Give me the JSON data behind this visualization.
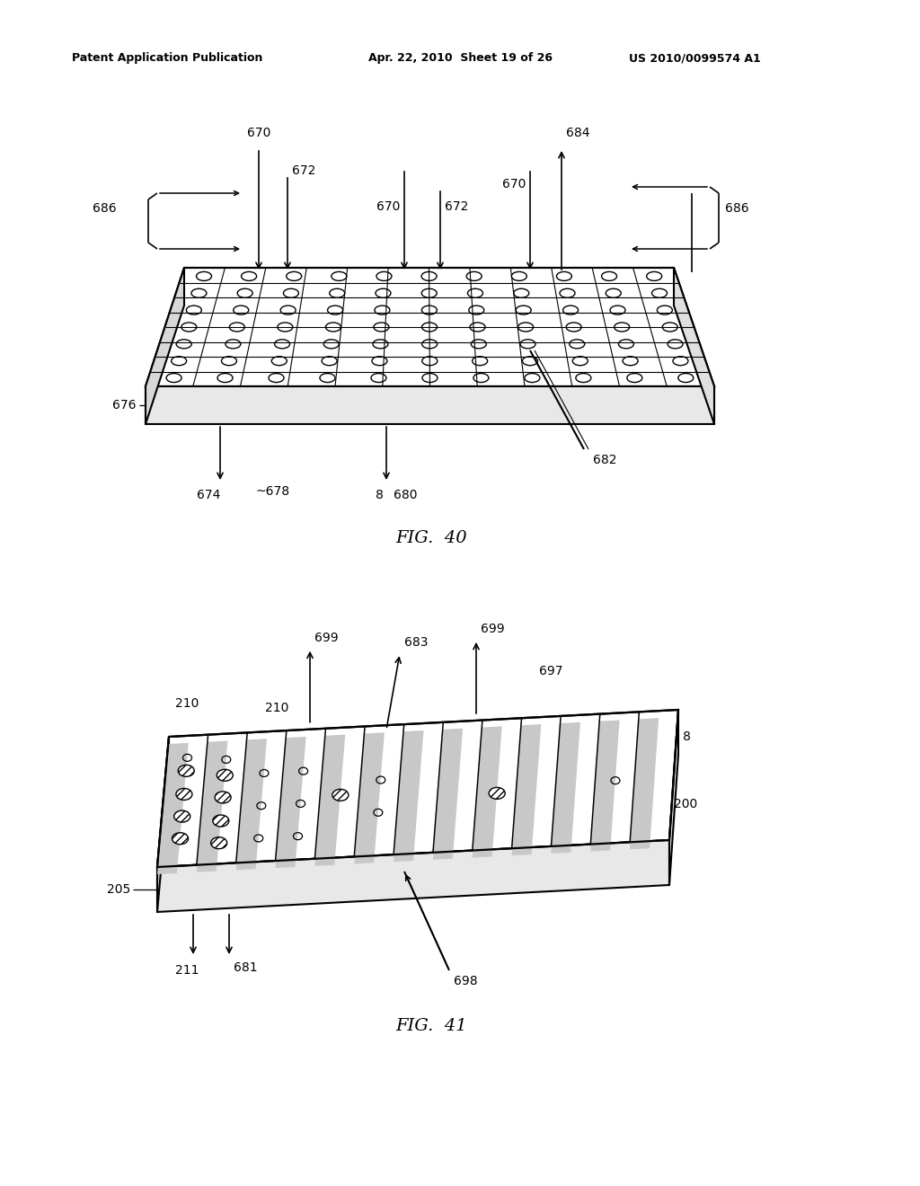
{
  "bg_color": "#ffffff",
  "header_left": "Patent Application Publication",
  "header_mid": "Apr. 22, 2010  Sheet 19 of 26",
  "header_right": "US 2010/0099574 A1",
  "fig40_label": "FIG.  40",
  "fig41_label": "FIG.  41"
}
